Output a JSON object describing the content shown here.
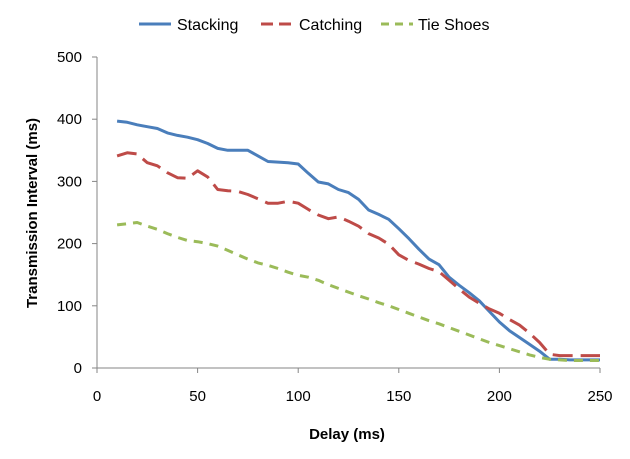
{
  "chart_data": {
    "type": "line",
    "title": "",
    "xlabel": "Delay (ms)",
    "ylabel": "Transmission Interval (ms)",
    "xlim": [
      0,
      250
    ],
    "ylim": [
      0,
      500
    ],
    "x_ticks": [
      0,
      50,
      100,
      150,
      200,
      250
    ],
    "y_ticks": [
      0,
      100,
      200,
      300,
      400,
      500
    ],
    "grid": false,
    "legend_position": "top",
    "series": [
      {
        "name": "Stacking",
        "color": "#4a7ebb",
        "style": "solid",
        "points": [
          [
            10,
            397
          ],
          [
            15,
            395
          ],
          [
            20,
            391
          ],
          [
            25,
            388
          ],
          [
            30,
            385
          ],
          [
            35,
            378
          ],
          [
            40,
            374
          ],
          [
            45,
            371
          ],
          [
            50,
            367
          ],
          [
            55,
            361
          ],
          [
            60,
            353
          ],
          [
            65,
            350
          ],
          [
            70,
            350
          ],
          [
            75,
            350
          ],
          [
            80,
            341
          ],
          [
            85,
            332
          ],
          [
            90,
            331
          ],
          [
            95,
            330
          ],
          [
            100,
            328
          ],
          [
            105,
            313
          ],
          [
            110,
            299
          ],
          [
            115,
            296
          ],
          [
            120,
            287
          ],
          [
            125,
            282
          ],
          [
            130,
            271
          ],
          [
            135,
            254
          ],
          [
            140,
            247
          ],
          [
            145,
            239
          ],
          [
            150,
            224
          ],
          [
            155,
            208
          ],
          [
            160,
            191
          ],
          [
            165,
            175
          ],
          [
            170,
            166
          ],
          [
            175,
            146
          ],
          [
            180,
            133
          ],
          [
            185,
            121
          ],
          [
            190,
            108
          ],
          [
            195,
            91
          ],
          [
            200,
            74
          ],
          [
            205,
            60
          ],
          [
            210,
            49
          ],
          [
            215,
            38
          ],
          [
            220,
            27
          ],
          [
            225,
            14
          ],
          [
            230,
            14
          ],
          [
            235,
            13
          ],
          [
            240,
            13
          ],
          [
            245,
            13
          ],
          [
            250,
            13
          ]
        ]
      },
      {
        "name": "Catching",
        "color": "#be4b48",
        "style": "dashed",
        "points": [
          [
            10,
            341
          ],
          [
            15,
            346
          ],
          [
            20,
            344
          ],
          [
            25,
            330
          ],
          [
            30,
            325
          ],
          [
            35,
            314
          ],
          [
            40,
            306
          ],
          [
            45,
            305
          ],
          [
            50,
            317
          ],
          [
            55,
            307
          ],
          [
            60,
            287
          ],
          [
            65,
            285
          ],
          [
            70,
            284
          ],
          [
            75,
            279
          ],
          [
            80,
            272
          ],
          [
            85,
            265
          ],
          [
            90,
            265
          ],
          [
            95,
            268
          ],
          [
            100,
            265
          ],
          [
            105,
            255
          ],
          [
            110,
            246
          ],
          [
            115,
            240
          ],
          [
            120,
            243
          ],
          [
            125,
            236
          ],
          [
            130,
            228
          ],
          [
            135,
            216
          ],
          [
            140,
            209
          ],
          [
            145,
            199
          ],
          [
            150,
            182
          ],
          [
            155,
            173
          ],
          [
            160,
            167
          ],
          [
            165,
            160
          ],
          [
            170,
            155
          ],
          [
            175,
            141
          ],
          [
            180,
            127
          ],
          [
            185,
            114
          ],
          [
            190,
            104
          ],
          [
            195,
            95
          ],
          [
            200,
            88
          ],
          [
            205,
            78
          ],
          [
            210,
            69
          ],
          [
            215,
            56
          ],
          [
            220,
            41
          ],
          [
            225,
            22
          ],
          [
            230,
            20
          ],
          [
            235,
            20
          ],
          [
            240,
            20
          ],
          [
            245,
            20
          ],
          [
            250,
            20
          ]
        ]
      },
      {
        "name": "Tie Shoes",
        "color": "#9bbb59",
        "style": "dashed",
        "points": [
          [
            10,
            230
          ],
          [
            15,
            232
          ],
          [
            20,
            234
          ],
          [
            25,
            228
          ],
          [
            30,
            223
          ],
          [
            35,
            216
          ],
          [
            40,
            210
          ],
          [
            45,
            205
          ],
          [
            50,
            203
          ],
          [
            55,
            200
          ],
          [
            60,
            196
          ],
          [
            65,
            189
          ],
          [
            70,
            182
          ],
          [
            75,
            175
          ],
          [
            80,
            169
          ],
          [
            85,
            165
          ],
          [
            90,
            160
          ],
          [
            95,
            154
          ],
          [
            100,
            149
          ],
          [
            105,
            146
          ],
          [
            110,
            141
          ],
          [
            115,
            134
          ],
          [
            120,
            128
          ],
          [
            125,
            122
          ],
          [
            130,
            116
          ],
          [
            135,
            111
          ],
          [
            140,
            105
          ],
          [
            145,
            100
          ],
          [
            150,
            94
          ],
          [
            155,
            88
          ],
          [
            160,
            82
          ],
          [
            165,
            76
          ],
          [
            170,
            71
          ],
          [
            175,
            65
          ],
          [
            180,
            59
          ],
          [
            185,
            53
          ],
          [
            190,
            47
          ],
          [
            195,
            41
          ],
          [
            200,
            36
          ],
          [
            205,
            31
          ],
          [
            210,
            26
          ],
          [
            215,
            21
          ],
          [
            220,
            17
          ],
          [
            225,
            14
          ],
          [
            230,
            13
          ],
          [
            235,
            12
          ],
          [
            240,
            12
          ],
          [
            245,
            12
          ],
          [
            250,
            12
          ]
        ]
      }
    ]
  }
}
